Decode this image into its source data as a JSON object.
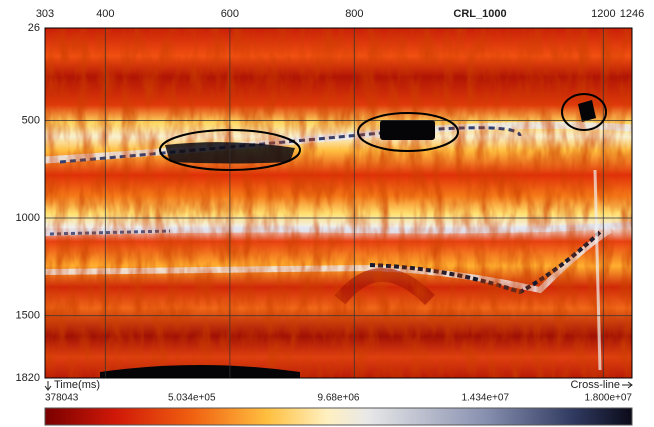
{
  "chart_data": {
    "type": "seismic",
    "title": "CRL_1000",
    "x_label": "Cross-line",
    "y_label": "Time(ms)",
    "xlim": [
      303,
      1246
    ],
    "xticks": [
      303,
      400,
      600,
      800,
      1200,
      1246
    ],
    "ylim": [
      26,
      1820
    ],
    "yticks": [
      26,
      500,
      1000,
      1500,
      1820
    ],
    "grid": true,
    "y_inverted": true,
    "colorbar_labels": [
      "378043",
      "5.034e+05",
      "9.68e+06",
      "1.434e+07",
      "1.800e+07"
    ]
  }
}
